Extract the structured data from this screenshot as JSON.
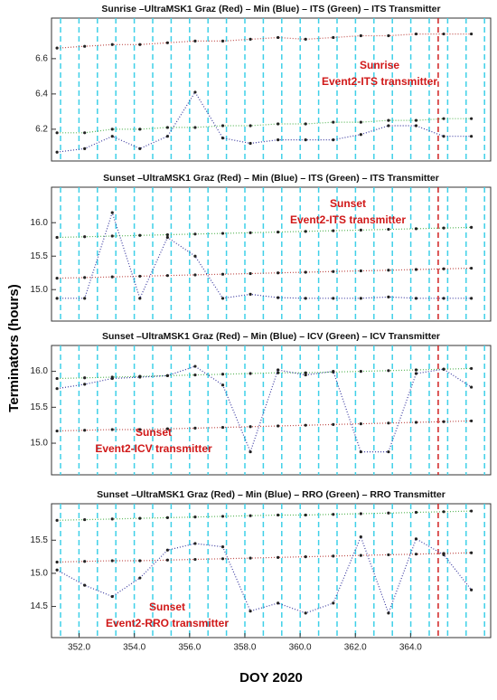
{
  "ylabel": "Terminators (hours)",
  "xlabel": "DOY 2020",
  "chart_data": [
    {
      "type": "line",
      "title": "Sunrise –UltraMSK1 Graz (Red) – Min (Blue) – ITS (Green) – ITS Transmitter",
      "annotations": [
        "Sunrise",
        "Event2-ITS transmitter"
      ],
      "x": [
        351.2,
        352.2,
        353.2,
        354.2,
        355.2,
        356.2,
        357.2,
        358.2,
        359.2,
        360.2,
        361.2,
        362.2,
        363.2,
        364.2,
        365.2,
        366.2
      ],
      "xlim": [
        351,
        366.9
      ],
      "event_x": 365.0,
      "ylim": [
        6.02,
        6.83
      ],
      "yticks": [
        6.2,
        6.4,
        6.6
      ],
      "series": [
        {
          "color": "#c0504d",
          "values": [
            6.66,
            6.67,
            6.68,
            6.68,
            6.69,
            6.7,
            6.7,
            6.71,
            6.72,
            6.71,
            6.72,
            6.73,
            6.73,
            6.74,
            6.74,
            6.74
          ]
        },
        {
          "color": "#5cb85c",
          "values": [
            6.18,
            6.18,
            6.2,
            6.2,
            6.21,
            6.21,
            6.22,
            6.22,
            6.23,
            6.23,
            6.24,
            6.24,
            6.25,
            6.25,
            6.26,
            6.26
          ]
        },
        {
          "color": "#3a3aa0",
          "values": [
            6.07,
            6.09,
            6.16,
            6.09,
            6.16,
            6.41,
            6.15,
            6.12,
            6.14,
            6.14,
            6.14,
            6.17,
            6.22,
            6.22,
            6.16,
            6.16
          ]
        }
      ]
    },
    {
      "type": "line",
      "title": "Sunset –UltraMSK1 Graz (Red) – Min (Blue) – ITS (Green) – ITS Transmitter",
      "annotations": [
        "Sunset",
        "Event2-ITS transmitter"
      ],
      "x": [
        351.2,
        352.2,
        353.2,
        354.2,
        355.2,
        356.2,
        357.2,
        358.2,
        359.2,
        360.2,
        361.2,
        362.2,
        363.2,
        364.2,
        365.2,
        366.2
      ],
      "xlim": [
        351,
        366.9
      ],
      "event_x": 365.0,
      "ylim": [
        14.53,
        16.53
      ],
      "yticks": [
        {
          "value": 15,
          "label": "15.0"
        },
        15.5,
        {
          "value": 16,
          "label": "16.0"
        }
      ],
      "series": [
        {
          "color": "#c0504d",
          "values": [
            15.17,
            15.18,
            15.19,
            15.2,
            15.21,
            15.22,
            15.23,
            15.24,
            15.25,
            15.26,
            15.27,
            15.28,
            15.29,
            15.3,
            15.31,
            15.32
          ]
        },
        {
          "color": "#5cb85c",
          "values": [
            15.78,
            15.79,
            15.8,
            15.81,
            15.82,
            15.83,
            15.84,
            15.85,
            15.86,
            15.87,
            15.88,
            15.89,
            15.9,
            15.91,
            15.92,
            15.93
          ]
        },
        {
          "color": "#3a3aa0",
          "values": [
            14.87,
            14.87,
            16.15,
            14.87,
            15.78,
            15.5,
            14.87,
            14.93,
            14.88,
            14.87,
            14.87,
            14.87,
            14.89,
            14.87,
            14.87,
            14.87
          ]
        }
      ]
    },
    {
      "type": "line",
      "title": "Sunset –UltraMSK1 Graz (Red) – Min (Blue) – ICV (Green) – ICV Transmitter",
      "annotations": [
        "Sunset",
        "Event2-ICV transmitter"
      ],
      "x": [
        351.2,
        352.2,
        353.2,
        354.2,
        355.2,
        356.2,
        357.2,
        358.2,
        359.2,
        360.2,
        361.2,
        362.2,
        363.2,
        364.2,
        365.2,
        366.2
      ],
      "xlim": [
        351,
        366.9
      ],
      "event_x": 365.0,
      "ylim": [
        14.56,
        16.36
      ],
      "yticks": [
        {
          "value": 15,
          "label": "15.0"
        },
        15.5,
        {
          "value": 16,
          "label": "16.0"
        }
      ],
      "series": [
        {
          "color": "#c0504d",
          "values": [
            15.17,
            15.18,
            15.19,
            15.19,
            15.2,
            15.21,
            15.22,
            15.23,
            15.24,
            15.25,
            15.26,
            15.27,
            15.28,
            15.29,
            15.3,
            15.31
          ]
        },
        {
          "color": "#5cb85c",
          "values": [
            15.9,
            15.91,
            15.92,
            15.93,
            15.94,
            15.95,
            15.96,
            15.97,
            15.98,
            15.98,
            15.99,
            16.0,
            16.01,
            16.02,
            16.03,
            16.04
          ]
        },
        {
          "color": "#3a3aa0",
          "values": [
            15.76,
            15.82,
            15.9,
            15.92,
            15.94,
            16.07,
            15.81,
            14.88,
            16.02,
            15.95,
            16.0,
            14.88,
            14.88,
            15.97,
            16.03,
            15.78
          ]
        }
      ]
    },
    {
      "type": "line",
      "title": "Sunset –UltraMSK1 Graz (Red) – Min (Blue) – RRO (Green) – RRO Transmitter",
      "annotations": [
        "Sunset",
        "Event2-RRO transmitter"
      ],
      "x": [
        351.2,
        352.2,
        353.2,
        354.2,
        355.2,
        356.2,
        357.2,
        358.2,
        359.2,
        360.2,
        361.2,
        362.2,
        363.2,
        364.2,
        365.2,
        366.2
      ],
      "xlim": [
        351,
        366.9
      ],
      "event_x": 365.0,
      "xticks": [
        {
          "value": 352,
          "label": "352.0"
        },
        {
          "value": 354,
          "label": "354.0"
        },
        {
          "value": 356,
          "label": "356.0"
        },
        {
          "value": 358,
          "label": "358.0"
        },
        {
          "value": 360,
          "label": "360.0"
        },
        {
          "value": 362,
          "label": "362.0"
        },
        {
          "value": 364,
          "label": "364.0"
        }
      ],
      "ylim": [
        14.03,
        16.05
      ],
      "yticks": [
        14.5,
        {
          "value": 15,
          "label": "15.0"
        },
        15.5
      ],
      "series": [
        {
          "color": "#c0504d",
          "values": [
            15.17,
            15.18,
            15.19,
            15.19,
            15.2,
            15.21,
            15.22,
            15.23,
            15.24,
            15.25,
            15.26,
            15.27,
            15.28,
            15.29,
            15.3,
            15.31
          ]
        },
        {
          "color": "#5cb85c",
          "values": [
            15.8,
            15.81,
            15.82,
            15.83,
            15.84,
            15.85,
            15.86,
            15.87,
            15.88,
            15.88,
            15.89,
            15.9,
            15.91,
            15.92,
            15.93,
            15.94
          ]
        },
        {
          "color": "#3a3aa0",
          "values": [
            15.05,
            14.82,
            14.65,
            14.93,
            15.35,
            15.45,
            15.4,
            14.43,
            14.55,
            14.4,
            14.55,
            15.55,
            14.4,
            15.52,
            15.28,
            14.75
          ]
        }
      ]
    }
  ]
}
